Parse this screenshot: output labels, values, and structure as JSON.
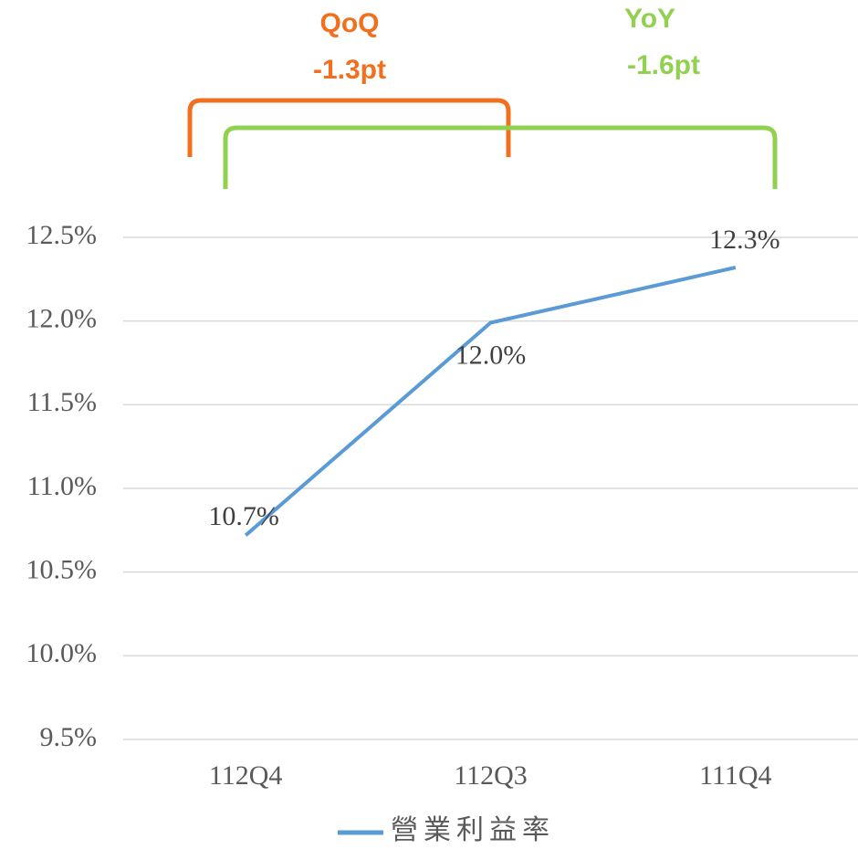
{
  "chart_data": {
    "type": "line",
    "categories": [
      "112Q4",
      "112Q3",
      "111Q4"
    ],
    "series": [
      {
        "name": "營業利益率",
        "color": "#5b9bd5",
        "values": [
          10.72,
          11.99,
          12.32
        ],
        "value_labels": [
          "10.7%",
          "12.0%",
          "12.3%"
        ]
      }
    ],
    "ylim": [
      9.5,
      12.5
    ],
    "yticks": [
      {
        "value": 9.5,
        "label": "9.5%"
      },
      {
        "value": 10.0,
        "label": "10.0%"
      },
      {
        "value": 10.5,
        "label": "10.5%"
      },
      {
        "value": 11.0,
        "label": "11.0%"
      },
      {
        "value": 11.5,
        "label": "11.5%"
      },
      {
        "value": 12.0,
        "label": "12.0%"
      },
      {
        "value": 12.5,
        "label": "12.5%"
      }
    ],
    "grid": true,
    "annotations": [
      {
        "text": "QoQ",
        "color": "#f07020"
      },
      {
        "text": "-1.3pt",
        "color": "#f07020"
      },
      {
        "text": "YoY",
        "color": "#92d050"
      },
      {
        "text": "-1.6pt",
        "color": "#92d050"
      }
    ]
  }
}
